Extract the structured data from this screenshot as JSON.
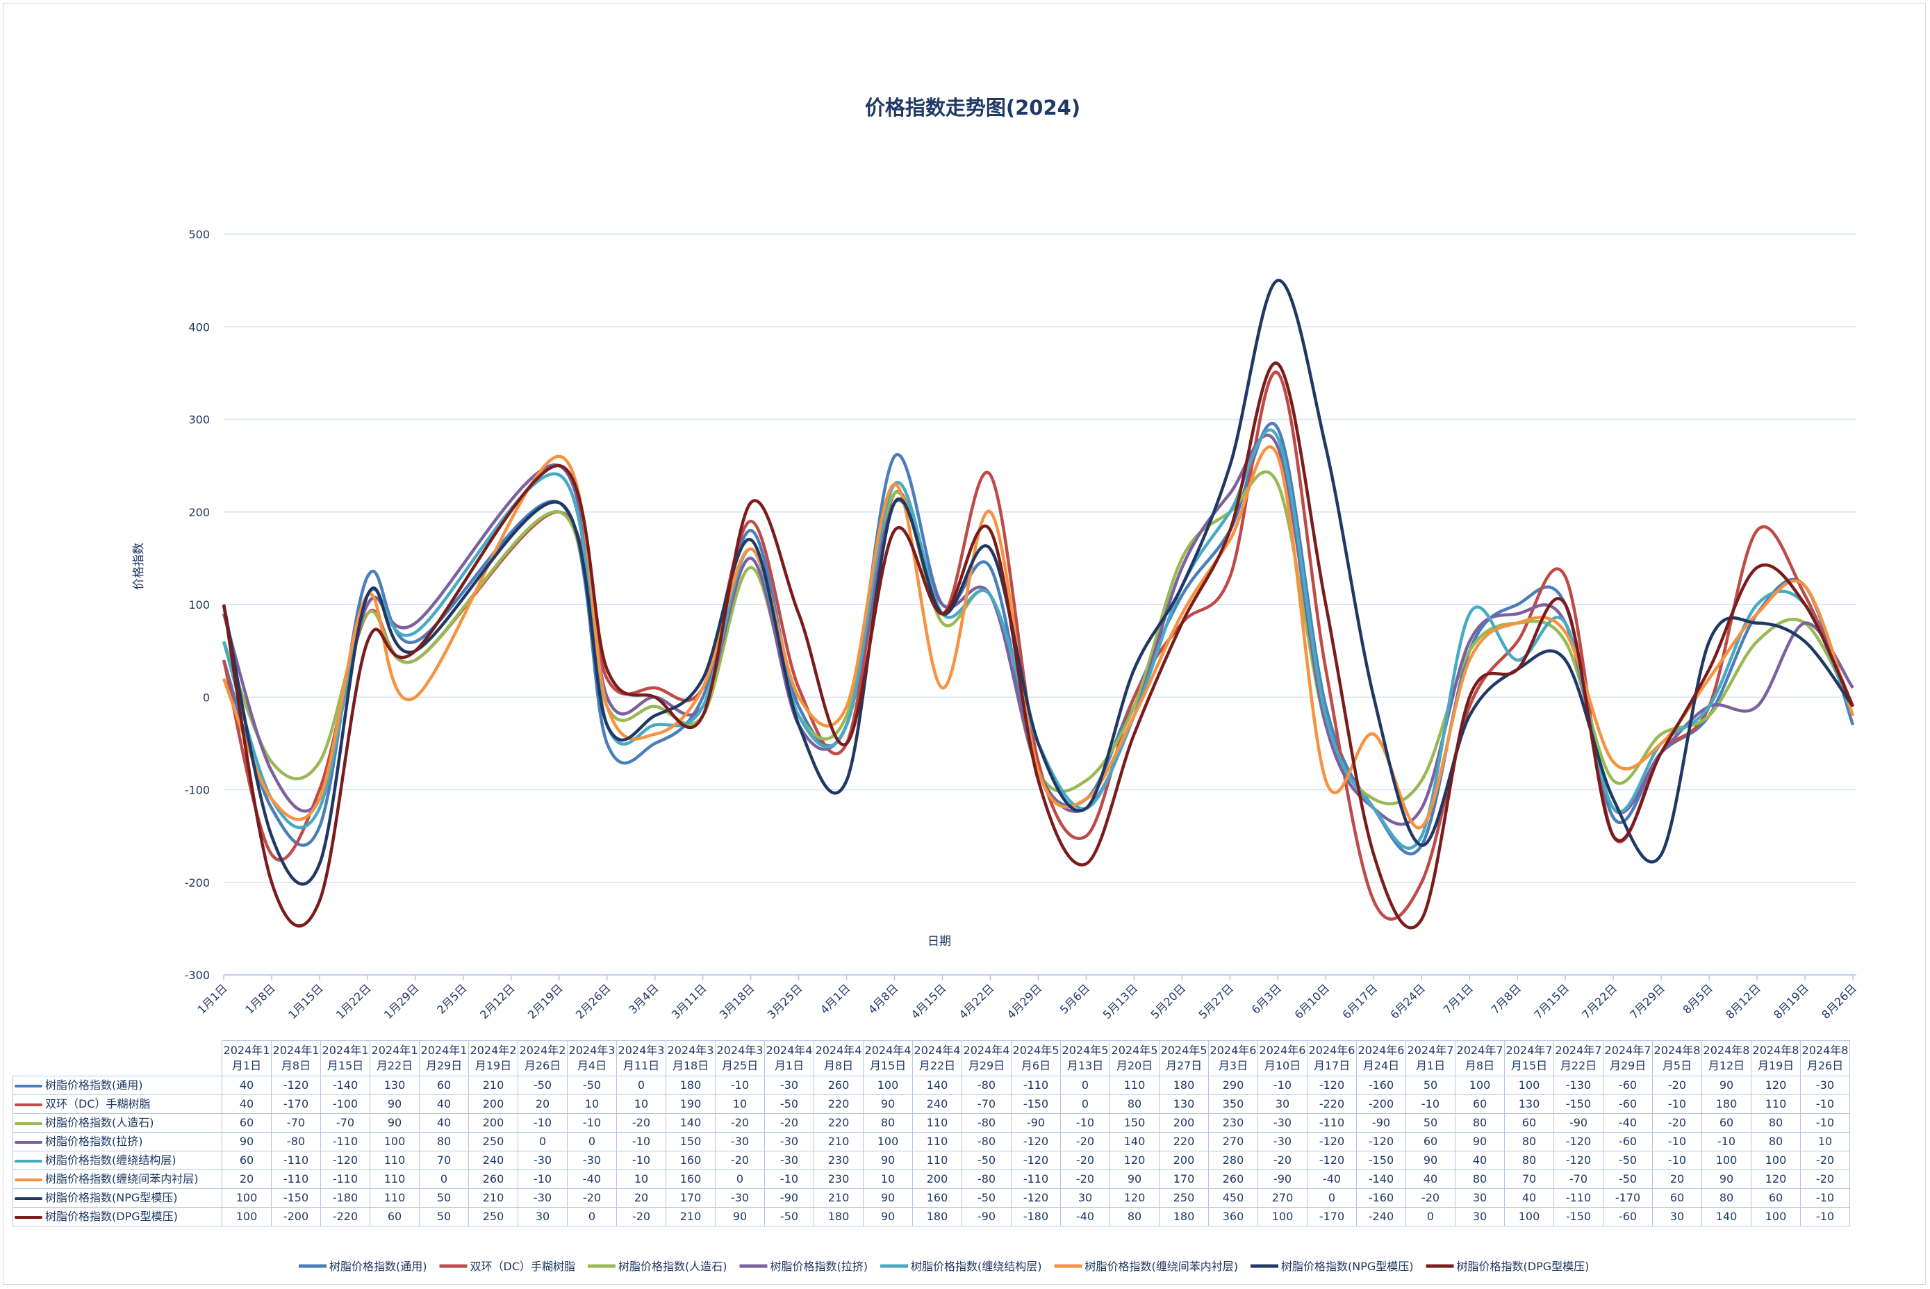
{
  "chart_data": {
    "type": "line",
    "title": "价格指数走势图(2024)",
    "y_axis_label": "价格指数",
    "x_axis_label": "日期",
    "categories": [
      "1月1日",
      "1月8日",
      "1月15日",
      "1月22日",
      "1月29日",
      "2月5日",
      "2月12日",
      "2月19日",
      "2月26日",
      "3月4日",
      "3月11日",
      "3月18日",
      "3月25日",
      "4月1日",
      "4月8日",
      "4月15日",
      "4月22日",
      "4月29日",
      "5月6日",
      "5月13日",
      "5月20日",
      "5月27日",
      "6月3日",
      "6月10日",
      "6月17日",
      "6月24日",
      "7月1日",
      "7月8日",
      "7月15日",
      "7月22日",
      "7月29日",
      "8月5日",
      "8月12日",
      "8月19日",
      "8月26日"
    ],
    "dates": [
      "2024年1月1日",
      "2024年1月8日",
      "2024年1月15日",
      "2024年1月22日",
      "2024年1月29日",
      "2024年2月19日",
      "2024年2月26日",
      "2024年3月4日",
      "2024年3月11日",
      "2024年3月18日",
      "2024年3月25日",
      "2024年4月1日",
      "2024年4月8日",
      "2024年4月15日",
      "2024年4月22日",
      "2024年4月29日",
      "2024年5月6日",
      "2024年5月13日",
      "2024年5月20日",
      "2024年5月27日",
      "2024年6月3日",
      "2024年6月10日",
      "2024年6月17日",
      "2024年6月24日",
      "2024年7月1日",
      "2024年7月8日",
      "2024年7月15日",
      "2024年7月22日",
      "2024年7月29日",
      "2024年8月5日",
      "2024年8月12日",
      "2024年8月19日",
      "2024年8月26日"
    ],
    "ylim": [
      -300,
      500
    ],
    "yticks": [
      -300,
      -200,
      -100,
      0,
      100,
      200,
      300,
      400,
      500
    ],
    "grid": true,
    "smooth": true,
    "legend": "bottom",
    "series": [
      {
        "name": "树脂价格指数(通用)",
        "color": "#4a7ebb",
        "values": [
          40,
          -120,
          -140,
          130,
          60,
          210,
          -50,
          -50,
          0,
          180,
          -10,
          -30,
          260,
          100,
          140,
          -80,
          -110,
          0,
          110,
          180,
          290,
          -10,
          -120,
          -160,
          50,
          100,
          100,
          -130,
          -60,
          -20,
          90,
          120,
          -30
        ]
      },
      {
        "name": "双环（DC）手糊树脂",
        "color": "#be4b48",
        "values": [
          40,
          -170,
          -100,
          90,
          40,
          200,
          20,
          10,
          10,
          190,
          10,
          -50,
          220,
          90,
          240,
          -70,
          -150,
          0,
          80,
          130,
          350,
          30,
          -220,
          -200,
          -10,
          60,
          130,
          -150,
          -60,
          -10,
          180,
          110,
          -10
        ]
      },
      {
        "name": "树脂价格指数(人造石)",
        "color": "#98b954",
        "values": [
          60,
          -70,
          -70,
          90,
          40,
          200,
          -10,
          -10,
          -20,
          140,
          -20,
          -20,
          220,
          80,
          110,
          -80,
          -90,
          -10,
          150,
          200,
          230,
          -30,
          -110,
          -90,
          50,
          80,
          60,
          -90,
          -40,
          -20,
          60,
          80,
          -10
        ]
      },
      {
        "name": "树脂价格指数(拉挤)",
        "color": "#7d60a0",
        "values": [
          90,
          -80,
          -110,
          100,
          80,
          250,
          0,
          0,
          -10,
          150,
          -30,
          -30,
          210,
          100,
          110,
          -80,
          -120,
          -20,
          140,
          220,
          270,
          -30,
          -120,
          -120,
          60,
          90,
          80,
          -120,
          -60,
          -10,
          -10,
          80,
          10
        ]
      },
      {
        "name": "树脂价格指数(缠绕结构层)",
        "color": "#46aac5",
        "values": [
          60,
          -110,
          -120,
          110,
          70,
          240,
          -30,
          -30,
          -10,
          160,
          -20,
          -30,
          230,
          90,
          110,
          -50,
          -120,
          -20,
          120,
          200,
          280,
          -20,
          -120,
          -150,
          90,
          40,
          80,
          -120,
          -50,
          -10,
          100,
          100,
          -20
        ]
      },
      {
        "name": "树脂价格指数(缠绕间苯内衬层)",
        "color": "#f69240",
        "values": [
          20,
          -110,
          -110,
          110,
          0,
          260,
          -10,
          -40,
          10,
          160,
          0,
          -10,
          230,
          10,
          200,
          -80,
          -110,
          -20,
          90,
          170,
          260,
          -90,
          -40,
          -140,
          40,
          80,
          70,
          -70,
          -50,
          20,
          90,
          120,
          -20
        ]
      },
      {
        "name": "树脂价格指数(NPG型模压)",
        "color": "#1f3864",
        "values": [
          100,
          -150,
          -180,
          110,
          50,
          210,
          -30,
          -20,
          20,
          170,
          -30,
          -90,
          210,
          90,
          160,
          -50,
          -120,
          30,
          120,
          250,
          450,
          270,
          0,
          -160,
          -20,
          30,
          40,
          -110,
          -170,
          60,
          80,
          60,
          -10
        ]
      },
      {
        "name": "树脂价格指数(DPG型模压)",
        "color": "#7b1c1c",
        "values": [
          100,
          -200,
          -220,
          60,
          50,
          250,
          30,
          0,
          -20,
          210,
          90,
          -50,
          180,
          90,
          180,
          -90,
          -180,
          -40,
          80,
          180,
          360,
          100,
          -170,
          -240,
          0,
          30,
          100,
          -150,
          -60,
          30,
          140,
          100,
          -10
        ]
      }
    ]
  }
}
